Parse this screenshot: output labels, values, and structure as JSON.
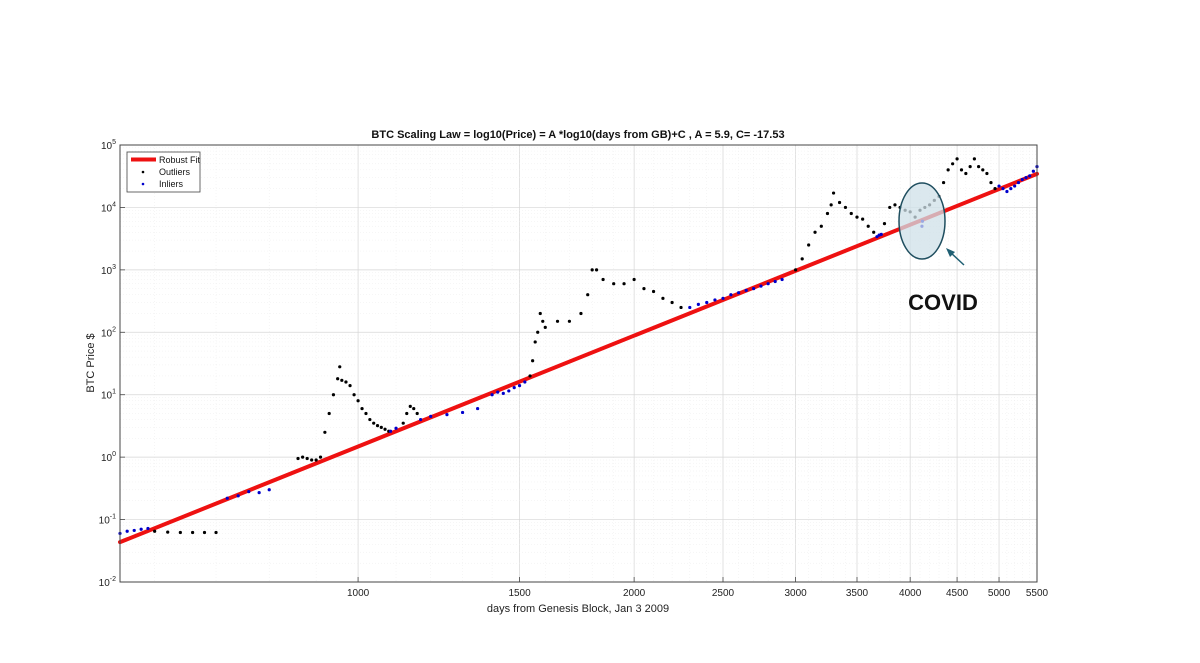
{
  "chart_data": {
    "type": "scatter",
    "title": "BTC Scaling Law = log10(Price) = A *log10(days from GB)+C , A = 5.9, C= -17.53",
    "xlabel": "days from Genesis Block, Jan 3 2009",
    "ylabel": "BTC Price $",
    "x_scale": "log",
    "y_scale": "log",
    "xlim": [
      550,
      5500
    ],
    "ylim": [
      0.01,
      100000
    ],
    "x_ticks": [
      {
        "value": 1000,
        "label": "1000"
      },
      {
        "value": 1500,
        "label": "1500"
      },
      {
        "value": 2000,
        "label": "2000"
      },
      {
        "value": 2500,
        "label": "2500"
      },
      {
        "value": 3000,
        "label": "3000"
      },
      {
        "value": 3500,
        "label": "3500"
      },
      {
        "value": 4000,
        "label": "4000"
      },
      {
        "value": 4500,
        "label": "4500"
      },
      {
        "value": 5000,
        "label": "5000"
      },
      {
        "value": 5500,
        "label": "5500"
      }
    ],
    "y_ticks": [
      {
        "value": 0.01,
        "base": "10",
        "exp": "-2"
      },
      {
        "value": 0.1,
        "base": "10",
        "exp": "-1"
      },
      {
        "value": 1,
        "base": "10",
        "exp": "0"
      },
      {
        "value": 10,
        "base": "10",
        "exp": "1"
      },
      {
        "value": 100,
        "base": "10",
        "exp": "2"
      },
      {
        "value": 1000,
        "base": "10",
        "exp": "3"
      },
      {
        "value": 10000,
        "base": "10",
        "exp": "4"
      },
      {
        "value": 100000,
        "base": "10",
        "exp": "5"
      }
    ],
    "grid": true,
    "legend_position": "top-left",
    "fit": {
      "name": "Robust Fit",
      "A": 5.9,
      "C": -17.53,
      "color": "#ee1111"
    },
    "series": [
      {
        "name": "Outliers",
        "color": "#000000",
        "points": [
          [
            600,
            0.065
          ],
          [
            620,
            0.063
          ],
          [
            640,
            0.062
          ],
          [
            660,
            0.062
          ],
          [
            680,
            0.062
          ],
          [
            700,
            0.062
          ],
          [
            860,
            0.95
          ],
          [
            870,
            1.0
          ],
          [
            880,
            0.95
          ],
          [
            890,
            0.9
          ],
          [
            900,
            0.9
          ],
          [
            910,
            1.0
          ],
          [
            920,
            2.5
          ],
          [
            930,
            5.0
          ],
          [
            940,
            10.0
          ],
          [
            950,
            18.0
          ],
          [
            955,
            28.0
          ],
          [
            960,
            17.0
          ],
          [
            970,
            16.0
          ],
          [
            980,
            14.0
          ],
          [
            990,
            10.0
          ],
          [
            1000,
            8.0
          ],
          [
            1010,
            6.0
          ],
          [
            1020,
            5.0
          ],
          [
            1030,
            4.0
          ],
          [
            1040,
            3.5
          ],
          [
            1050,
            3.2
          ],
          [
            1060,
            3.0
          ],
          [
            1070,
            2.8
          ],
          [
            1080,
            2.6
          ],
          [
            1120,
            3.5
          ],
          [
            1130,
            5.0
          ],
          [
            1140,
            6.5
          ],
          [
            1150,
            6.0
          ],
          [
            1160,
            5.0
          ],
          [
            1540,
            20.0
          ],
          [
            1550,
            35.0
          ],
          [
            1560,
            70.0
          ],
          [
            1570,
            100.0
          ],
          [
            1580,
            200.0
          ],
          [
            1590,
            150.0
          ],
          [
            1600,
            120.0
          ],
          [
            1650,
            150.0
          ],
          [
            1700,
            150.0
          ],
          [
            1750,
            200.0
          ],
          [
            1780,
            400.0
          ],
          [
            1800,
            1000.0
          ],
          [
            1820,
            1000.0
          ],
          [
            1850,
            700.0
          ],
          [
            1900,
            600.0
          ],
          [
            1950,
            600.0
          ],
          [
            2000,
            700.0
          ],
          [
            2050,
            500.0
          ],
          [
            2100,
            450.0
          ],
          [
            2150,
            350.0
          ],
          [
            2200,
            300.0
          ],
          [
            2250,
            250.0
          ],
          [
            3000,
            1000.0
          ],
          [
            3050,
            1500.0
          ],
          [
            3100,
            2500.0
          ],
          [
            3150,
            4000.0
          ],
          [
            3200,
            5000.0
          ],
          [
            3250,
            8000.0
          ],
          [
            3280,
            11000.0
          ],
          [
            3300,
            17000.0
          ],
          [
            3350,
            12000.0
          ],
          [
            3400,
            10000.0
          ],
          [
            3450,
            8000.0
          ],
          [
            3500,
            7000.0
          ],
          [
            3550,
            6500.0
          ],
          [
            3600,
            5000.0
          ],
          [
            3650,
            4000.0
          ],
          [
            3750,
            5500.0
          ],
          [
            3800,
            10000.0
          ],
          [
            3850,
            11000.0
          ],
          [
            3900,
            10000.0
          ],
          [
            3950,
            9000.0
          ],
          [
            4000,
            8500.0
          ],
          [
            4050,
            7000.0
          ],
          [
            4100,
            9000.0
          ],
          [
            4150,
            10000.0
          ],
          [
            4200,
            11000.0
          ],
          [
            4250,
            13000.0
          ],
          [
            4300,
            15000.0
          ],
          [
            4350,
            25000.0
          ],
          [
            4400,
            40000.0
          ],
          [
            4450,
            50000.0
          ],
          [
            4500,
            60000.0
          ],
          [
            4550,
            40000.0
          ],
          [
            4600,
            35000.0
          ],
          [
            4650,
            45000.0
          ],
          [
            4700,
            60000.0
          ],
          [
            4750,
            45000.0
          ],
          [
            4800,
            40000.0
          ],
          [
            4850,
            35000.0
          ],
          [
            4900,
            25000.0
          ],
          [
            4950,
            20000.0
          ]
        ]
      },
      {
        "name": "Inliers",
        "color": "#0000cc",
        "points": [
          [
            550,
            0.06
          ],
          [
            560,
            0.065
          ],
          [
            570,
            0.067
          ],
          [
            580,
            0.07
          ],
          [
            590,
            0.072
          ],
          [
            720,
            0.22
          ],
          [
            740,
            0.24
          ],
          [
            760,
            0.28
          ],
          [
            780,
            0.27
          ],
          [
            800,
            0.3
          ],
          [
            1085,
            2.6
          ],
          [
            1100,
            2.9
          ],
          [
            1170,
            4.0
          ],
          [
            1200,
            4.5
          ],
          [
            1250,
            4.8
          ],
          [
            1300,
            5.2
          ],
          [
            1350,
            6.0
          ],
          [
            1400,
            10.0
          ],
          [
            1420,
            11.0
          ],
          [
            1440,
            10.5
          ],
          [
            1460,
            11.5
          ],
          [
            1480,
            13.0
          ],
          [
            1500,
            14.0
          ],
          [
            1520,
            16.0
          ],
          [
            2300,
            250.0
          ],
          [
            2350,
            280.0
          ],
          [
            2400,
            300.0
          ],
          [
            2450,
            330.0
          ],
          [
            2500,
            350.0
          ],
          [
            2550,
            400.0
          ],
          [
            2600,
            430.0
          ],
          [
            2650,
            470.0
          ],
          [
            2700,
            500.0
          ],
          [
            2750,
            550.0
          ],
          [
            2800,
            600.0
          ],
          [
            2850,
            650.0
          ],
          [
            2900,
            700.0
          ],
          [
            3680,
            3400.0
          ],
          [
            3700,
            3600.0
          ],
          [
            3720,
            3700.0
          ],
          [
            4120,
            5000.0
          ],
          [
            4125,
            6000.0
          ],
          [
            5000,
            22000.0
          ],
          [
            5050,
            20000.0
          ],
          [
            5100,
            18000.0
          ],
          [
            5150,
            20000.0
          ],
          [
            5200,
            22000.0
          ],
          [
            5250,
            25000.0
          ],
          [
            5300,
            28000.0
          ],
          [
            5350,
            30000.0
          ],
          [
            5400,
            32000.0
          ],
          [
            5450,
            38000.0
          ],
          [
            5500,
            45000.0
          ]
        ]
      }
    ],
    "annotations": [
      {
        "text": "COVID"
      }
    ]
  }
}
